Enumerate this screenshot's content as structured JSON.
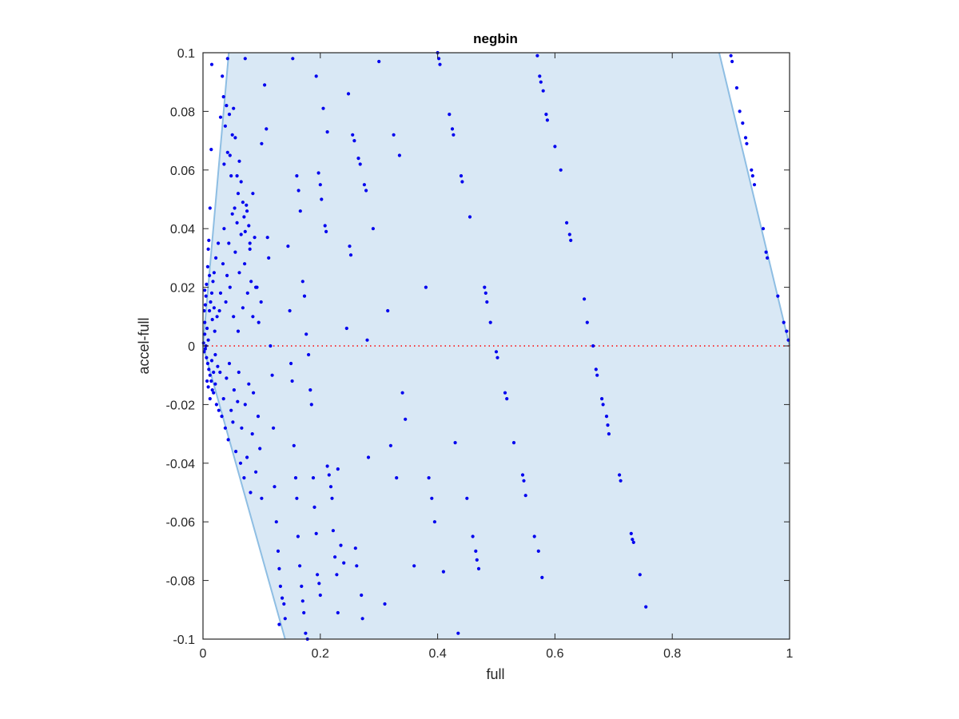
{
  "chart_data": {
    "type": "scatter",
    "title": "negbin",
    "xlabel": "full",
    "ylabel": "accel-full",
    "xlim": [
      0,
      1
    ],
    "ylim": [
      -0.1,
      0.1
    ],
    "x_ticks": [
      "0",
      "0.2",
      "0.4",
      "0.6",
      "0.8",
      "1"
    ],
    "y_ticks": [
      "-0.1",
      "-0.08",
      "-0.06",
      "-0.04",
      "-0.02",
      "0",
      "0.02",
      "0.04",
      "0.06",
      "0.08",
      "0.1"
    ],
    "grid": false,
    "legend": "none",
    "reference_line": {
      "y": 0,
      "style": "dotted",
      "color": "#ff0000"
    },
    "shaded_region": {
      "fill": "#d9e8f5",
      "edge": "#8ebee3",
      "polygon": [
        [
          0.0,
          0.0
        ],
        [
          0.044,
          0.1
        ],
        [
          0.88,
          0.1
        ],
        [
          1.0,
          0.0
        ],
        [
          1.0,
          -0.1
        ],
        [
          0.14,
          -0.1
        ]
      ]
    },
    "point_color": "#0000ee",
    "series": [
      {
        "points": [
          [
            0.001,
            0.001
          ],
          [
            0.002,
            -0.002
          ],
          [
            0.003,
            0.004
          ],
          [
            0.004,
            -0.001
          ],
          [
            0.005,
            0.0
          ],
          [
            0.003,
            0.008
          ],
          [
            0.006,
            -0.004
          ],
          [
            0.007,
            0.006
          ],
          [
            0.008,
            -0.006
          ],
          [
            0.009,
            0.002
          ],
          [
            0.01,
            -0.008
          ],
          [
            0.011,
            0.012
          ],
          [
            0.012,
            -0.01
          ],
          [
            0.013,
            0.015
          ],
          [
            0.014,
            -0.012
          ],
          [
            0.015,
            0.018
          ],
          [
            0.016,
            -0.015
          ],
          [
            0.017,
            0.022
          ],
          [
            0.018,
            -0.016
          ],
          [
            0.019,
            0.025
          ],
          [
            0.02,
            0.005
          ],
          [
            0.021,
            -0.003
          ],
          [
            0.022,
            0.03
          ],
          [
            0.023,
            -0.02
          ],
          [
            0.024,
            0.01
          ],
          [
            0.025,
            -0.007
          ],
          [
            0.026,
            0.035
          ],
          [
            0.027,
            -0.022
          ],
          [
            0.028,
            0.012
          ],
          [
            0.029,
            -0.009
          ],
          [
            0.006,
            0.021
          ],
          [
            0.008,
            0.027
          ],
          [
            0.009,
            0.033
          ],
          [
            0.011,
            0.024
          ],
          [
            0.004,
            0.014
          ],
          [
            0.005,
            0.017
          ],
          [
            0.012,
            0.047
          ],
          [
            0.014,
            0.067
          ],
          [
            0.015,
            0.096
          ],
          [
            0.002,
            0.012
          ],
          [
            0.003,
            0.019
          ],
          [
            0.01,
            0.036
          ],
          [
            0.007,
            -0.012
          ],
          [
            0.009,
            -0.014
          ],
          [
            0.012,
            -0.018
          ],
          [
            0.015,
            -0.005
          ],
          [
            0.018,
            -0.009
          ],
          [
            0.021,
            -0.013
          ],
          [
            0.016,
            0.009
          ],
          [
            0.019,
            0.013
          ],
          [
            0.03,
            0.018
          ],
          [
            0.032,
            -0.024
          ],
          [
            0.034,
            0.028
          ],
          [
            0.035,
            -0.018
          ],
          [
            0.036,
            0.04
          ],
          [
            0.038,
            -0.028
          ],
          [
            0.039,
            0.015
          ],
          [
            0.04,
            -0.011
          ],
          [
            0.041,
            0.024
          ],
          [
            0.043,
            -0.032
          ],
          [
            0.044,
            0.035
          ],
          [
            0.045,
            -0.006
          ],
          [
            0.046,
            0.02
          ],
          [
            0.048,
            -0.022
          ],
          [
            0.05,
            0.045
          ],
          [
            0.051,
            -0.026
          ],
          [
            0.052,
            0.01
          ],
          [
            0.053,
            -0.015
          ],
          [
            0.055,
            0.032
          ],
          [
            0.056,
            -0.036
          ],
          [
            0.058,
            0.042
          ],
          [
            0.059,
            -0.019
          ],
          [
            0.06,
            0.005
          ],
          [
            0.061,
            -0.009
          ],
          [
            0.062,
            0.025
          ],
          [
            0.064,
            -0.04
          ],
          [
            0.065,
            0.038
          ],
          [
            0.066,
            -0.028
          ],
          [
            0.068,
            0.013
          ],
          [
            0.07,
            -0.045
          ],
          [
            0.071,
            0.028
          ],
          [
            0.072,
            -0.02
          ],
          [
            0.074,
            0.048
          ],
          [
            0.075,
            -0.038
          ],
          [
            0.076,
            0.018
          ],
          [
            0.078,
            -0.013
          ],
          [
            0.08,
            0.033
          ],
          [
            0.081,
            -0.05
          ],
          [
            0.082,
            0.022
          ],
          [
            0.084,
            -0.03
          ],
          [
            0.085,
            0.01
          ],
          [
            0.086,
            -0.016
          ],
          [
            0.088,
            0.037
          ],
          [
            0.09,
            -0.043
          ],
          [
            0.092,
            0.02
          ],
          [
            0.094,
            -0.024
          ],
          [
            0.095,
            0.008
          ],
          [
            0.097,
            -0.035
          ],
          [
            0.099,
            0.015
          ],
          [
            0.1,
            -0.052
          ],
          [
            0.035,
            0.085
          ],
          [
            0.038,
            0.075
          ],
          [
            0.04,
            0.082
          ],
          [
            0.042,
            0.066
          ],
          [
            0.045,
            0.079
          ],
          [
            0.048,
            0.058
          ],
          [
            0.05,
            0.072
          ],
          [
            0.03,
            0.078
          ],
          [
            0.033,
            0.092
          ],
          [
            0.055,
            0.071
          ],
          [
            0.058,
            0.058
          ],
          [
            0.06,
            0.052
          ],
          [
            0.062,
            0.063
          ],
          [
            0.065,
            0.056
          ],
          [
            0.068,
            0.049
          ],
          [
            0.07,
            0.044
          ],
          [
            0.072,
            0.039
          ],
          [
            0.075,
            0.046
          ],
          [
            0.078,
            0.041
          ],
          [
            0.08,
            0.035
          ],
          [
            0.042,
            0.098
          ],
          [
            0.052,
            0.081
          ],
          [
            0.036,
            0.062
          ],
          [
            0.046,
            0.065
          ],
          [
            0.054,
            0.047
          ],
          [
            0.072,
            0.098
          ],
          [
            0.085,
            0.052
          ],
          [
            0.09,
            0.02
          ],
          [
            0.1,
            0.069
          ],
          [
            0.105,
            0.089
          ],
          [
            0.108,
            0.074
          ],
          [
            0.11,
            0.037
          ],
          [
            0.112,
            0.03
          ],
          [
            0.115,
            0.0
          ],
          [
            0.118,
            -0.01
          ],
          [
            0.12,
            -0.028
          ],
          [
            0.122,
            -0.048
          ],
          [
            0.125,
            -0.06
          ],
          [
            0.128,
            -0.07
          ],
          [
            0.13,
            -0.076
          ],
          [
            0.132,
            -0.082
          ],
          [
            0.135,
            -0.086
          ],
          [
            0.138,
            -0.088
          ],
          [
            0.14,
            -0.093
          ],
          [
            0.13,
            -0.095
          ],
          [
            0.145,
            0.034
          ],
          [
            0.148,
            0.012
          ],
          [
            0.15,
            -0.006
          ],
          [
            0.152,
            -0.012
          ],
          [
            0.155,
            -0.034
          ],
          [
            0.158,
            -0.045
          ],
          [
            0.16,
            -0.052
          ],
          [
            0.162,
            -0.065
          ],
          [
            0.165,
            -0.075
          ],
          [
            0.168,
            -0.082
          ],
          [
            0.17,
            -0.087
          ],
          [
            0.172,
            -0.091
          ],
          [
            0.175,
            -0.098
          ],
          [
            0.178,
            -0.1
          ],
          [
            0.153,
            0.098
          ],
          [
            0.16,
            0.058
          ],
          [
            0.163,
            0.053
          ],
          [
            0.166,
            0.046
          ],
          [
            0.17,
            0.022
          ],
          [
            0.173,
            0.017
          ],
          [
            0.176,
            0.004
          ],
          [
            0.18,
            -0.003
          ],
          [
            0.183,
            -0.015
          ],
          [
            0.185,
            -0.02
          ],
          [
            0.188,
            -0.045
          ],
          [
            0.19,
            -0.055
          ],
          [
            0.193,
            -0.064
          ],
          [
            0.195,
            -0.078
          ],
          [
            0.198,
            -0.081
          ],
          [
            0.2,
            -0.085
          ],
          [
            0.193,
            0.092
          ],
          [
            0.197,
            0.059
          ],
          [
            0.2,
            0.055
          ],
          [
            0.202,
            0.05
          ],
          [
            0.205,
            0.081
          ],
          [
            0.208,
            0.041
          ],
          [
            0.21,
            0.039
          ],
          [
            0.212,
            -0.041
          ],
          [
            0.215,
            -0.044
          ],
          [
            0.218,
            -0.048
          ],
          [
            0.22,
            -0.052
          ],
          [
            0.222,
            -0.063
          ],
          [
            0.225,
            -0.072
          ],
          [
            0.228,
            -0.078
          ],
          [
            0.23,
            -0.091
          ],
          [
            0.212,
            0.073
          ],
          [
            0.23,
            -0.042
          ],
          [
            0.235,
            -0.068
          ],
          [
            0.24,
            -0.074
          ],
          [
            0.245,
            0.006
          ],
          [
            0.248,
            0.086
          ],
          [
            0.25,
            0.034
          ],
          [
            0.252,
            0.031
          ],
          [
            0.255,
            0.072
          ],
          [
            0.258,
            0.07
          ],
          [
            0.26,
            -0.069
          ],
          [
            0.262,
            -0.075
          ],
          [
            0.265,
            0.064
          ],
          [
            0.268,
            0.062
          ],
          [
            0.27,
            -0.085
          ],
          [
            0.272,
            -0.093
          ],
          [
            0.275,
            0.055
          ],
          [
            0.278,
            0.053
          ],
          [
            0.28,
            0.002
          ],
          [
            0.282,
            -0.038
          ],
          [
            0.29,
            0.04
          ],
          [
            0.3,
            0.097
          ],
          [
            0.31,
            -0.088
          ],
          [
            0.315,
            0.012
          ],
          [
            0.32,
            -0.034
          ],
          [
            0.325,
            0.072
          ],
          [
            0.33,
            -0.045
          ],
          [
            0.335,
            0.065
          ],
          [
            0.34,
            -0.016
          ],
          [
            0.345,
            -0.025
          ],
          [
            0.36,
            -0.075
          ],
          [
            0.38,
            0.02
          ],
          [
            0.385,
            -0.045
          ],
          [
            0.39,
            -0.052
          ],
          [
            0.395,
            -0.06
          ],
          [
            0.4,
            0.1
          ],
          [
            0.402,
            0.098
          ],
          [
            0.404,
            0.096
          ],
          [
            0.41,
            -0.077
          ],
          [
            0.42,
            0.079
          ],
          [
            0.425,
            0.074
          ],
          [
            0.427,
            0.072
          ],
          [
            0.43,
            -0.033
          ],
          [
            0.435,
            -0.098
          ],
          [
            0.44,
            0.058
          ],
          [
            0.442,
            0.056
          ],
          [
            0.45,
            -0.052
          ],
          [
            0.455,
            0.044
          ],
          [
            0.46,
            -0.065
          ],
          [
            0.465,
            -0.07
          ],
          [
            0.467,
            -0.073
          ],
          [
            0.47,
            -0.076
          ],
          [
            0.48,
            0.02
          ],
          [
            0.482,
            0.018
          ],
          [
            0.484,
            0.015
          ],
          [
            0.49,
            0.008
          ],
          [
            0.5,
            -0.002
          ],
          [
            0.502,
            -0.004
          ],
          [
            0.515,
            -0.016
          ],
          [
            0.518,
            -0.018
          ],
          [
            0.53,
            -0.033
          ],
          [
            0.545,
            -0.044
          ],
          [
            0.547,
            -0.046
          ],
          [
            0.55,
            -0.051
          ],
          [
            0.565,
            -0.065
          ],
          [
            0.57,
            0.099
          ],
          [
            0.572,
            -0.07
          ],
          [
            0.574,
            0.092
          ],
          [
            0.576,
            0.09
          ],
          [
            0.578,
            -0.079
          ],
          [
            0.58,
            0.087
          ],
          [
            0.585,
            0.079
          ],
          [
            0.587,
            0.077
          ],
          [
            0.6,
            0.068
          ],
          [
            0.61,
            0.06
          ],
          [
            0.62,
            0.042
          ],
          [
            0.625,
            0.038
          ],
          [
            0.627,
            0.036
          ],
          [
            0.65,
            0.016
          ],
          [
            0.655,
            0.008
          ],
          [
            0.665,
            0.0
          ],
          [
            0.67,
            -0.008
          ],
          [
            0.672,
            -0.01
          ],
          [
            0.68,
            -0.018
          ],
          [
            0.682,
            -0.02
          ],
          [
            0.688,
            -0.024
          ],
          [
            0.69,
            -0.027
          ],
          [
            0.692,
            -0.03
          ],
          [
            0.71,
            -0.044
          ],
          [
            0.712,
            -0.046
          ],
          [
            0.73,
            -0.064
          ],
          [
            0.732,
            -0.066
          ],
          [
            0.734,
            -0.067
          ],
          [
            0.745,
            -0.078
          ],
          [
            0.755,
            -0.089
          ],
          [
            0.9,
            0.099
          ],
          [
            0.902,
            0.097
          ],
          [
            0.91,
            0.088
          ],
          [
            0.915,
            0.08
          ],
          [
            0.92,
            0.076
          ],
          [
            0.925,
            0.071
          ],
          [
            0.927,
            0.069
          ],
          [
            0.935,
            0.06
          ],
          [
            0.937,
            0.058
          ],
          [
            0.94,
            0.055
          ],
          [
            0.955,
            0.04
          ],
          [
            0.96,
            0.032
          ],
          [
            0.962,
            0.03
          ],
          [
            0.98,
            0.017
          ],
          [
            0.99,
            0.008
          ],
          [
            0.995,
            0.005
          ],
          [
            0.998,
            0.002
          ]
        ]
      }
    ]
  }
}
